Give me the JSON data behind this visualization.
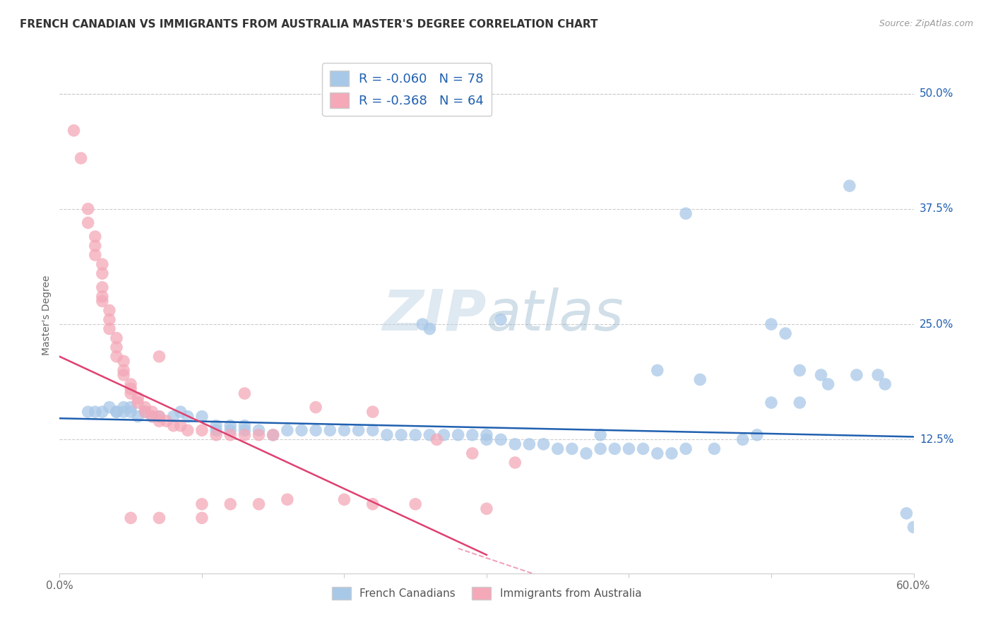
{
  "title": "FRENCH CANADIAN VS IMMIGRANTS FROM AUSTRALIA MASTER'S DEGREE CORRELATION CHART",
  "source": "Source: ZipAtlas.com",
  "ylabel": "Master's Degree",
  "watermark": "ZIPatlas",
  "xlim": [
    0.0,
    0.6
  ],
  "ylim": [
    -0.02,
    0.54
  ],
  "ytick_labels_right": [
    "50.0%",
    "37.5%",
    "25.0%",
    "12.5%"
  ],
  "ytick_positions_right": [
    0.5,
    0.375,
    0.25,
    0.125
  ],
  "blue_R": -0.06,
  "blue_N": 78,
  "pink_R": -0.368,
  "pink_N": 64,
  "blue_color": "#a8c8e8",
  "pink_color": "#f4a8b8",
  "blue_line_color": "#2060b0",
  "pink_line_color": "#e04070",
  "blue_scatter": [
    [
      0.02,
      0.155
    ],
    [
      0.025,
      0.155
    ],
    [
      0.03,
      0.155
    ],
    [
      0.035,
      0.16
    ],
    [
      0.04,
      0.155
    ],
    [
      0.04,
      0.155
    ],
    [
      0.045,
      0.155
    ],
    [
      0.045,
      0.16
    ],
    [
      0.05,
      0.155
    ],
    [
      0.05,
      0.16
    ],
    [
      0.055,
      0.15
    ],
    [
      0.06,
      0.155
    ],
    [
      0.065,
      0.15
    ],
    [
      0.07,
      0.15
    ],
    [
      0.08,
      0.15
    ],
    [
      0.085,
      0.155
    ],
    [
      0.09,
      0.15
    ],
    [
      0.1,
      0.15
    ],
    [
      0.11,
      0.135
    ],
    [
      0.11,
      0.14
    ],
    [
      0.12,
      0.135
    ],
    [
      0.12,
      0.14
    ],
    [
      0.13,
      0.135
    ],
    [
      0.13,
      0.14
    ],
    [
      0.14,
      0.135
    ],
    [
      0.15,
      0.13
    ],
    [
      0.16,
      0.135
    ],
    [
      0.17,
      0.135
    ],
    [
      0.18,
      0.135
    ],
    [
      0.19,
      0.135
    ],
    [
      0.2,
      0.135
    ],
    [
      0.21,
      0.135
    ],
    [
      0.22,
      0.135
    ],
    [
      0.23,
      0.13
    ],
    [
      0.24,
      0.13
    ],
    [
      0.25,
      0.13
    ],
    [
      0.26,
      0.13
    ],
    [
      0.27,
      0.13
    ],
    [
      0.28,
      0.13
    ],
    [
      0.29,
      0.13
    ],
    [
      0.3,
      0.125
    ],
    [
      0.3,
      0.13
    ],
    [
      0.31,
      0.125
    ],
    [
      0.32,
      0.12
    ],
    [
      0.33,
      0.12
    ],
    [
      0.34,
      0.12
    ],
    [
      0.35,
      0.115
    ],
    [
      0.36,
      0.115
    ],
    [
      0.37,
      0.11
    ],
    [
      0.38,
      0.115
    ],
    [
      0.38,
      0.13
    ],
    [
      0.39,
      0.115
    ],
    [
      0.4,
      0.115
    ],
    [
      0.41,
      0.115
    ],
    [
      0.42,
      0.11
    ],
    [
      0.43,
      0.11
    ],
    [
      0.44,
      0.115
    ],
    [
      0.45,
      0.19
    ],
    [
      0.46,
      0.115
    ],
    [
      0.48,
      0.125
    ],
    [
      0.49,
      0.13
    ],
    [
      0.5,
      0.25
    ],
    [
      0.51,
      0.24
    ],
    [
      0.52,
      0.2
    ],
    [
      0.535,
      0.195
    ],
    [
      0.54,
      0.185
    ],
    [
      0.555,
      0.4
    ],
    [
      0.44,
      0.37
    ],
    [
      0.31,
      0.255
    ],
    [
      0.255,
      0.25
    ],
    [
      0.26,
      0.245
    ],
    [
      0.42,
      0.2
    ],
    [
      0.58,
      0.185
    ],
    [
      0.5,
      0.165
    ],
    [
      0.52,
      0.165
    ],
    [
      0.56,
      0.195
    ],
    [
      0.575,
      0.195
    ],
    [
      0.595,
      0.045
    ],
    [
      0.6,
      0.03
    ]
  ],
  "pink_scatter": [
    [
      0.01,
      0.46
    ],
    [
      0.015,
      0.43
    ],
    [
      0.02,
      0.375
    ],
    [
      0.02,
      0.36
    ],
    [
      0.025,
      0.345
    ],
    [
      0.025,
      0.335
    ],
    [
      0.025,
      0.325
    ],
    [
      0.03,
      0.315
    ],
    [
      0.03,
      0.305
    ],
    [
      0.03,
      0.29
    ],
    [
      0.03,
      0.28
    ],
    [
      0.03,
      0.275
    ],
    [
      0.035,
      0.265
    ],
    [
      0.035,
      0.255
    ],
    [
      0.035,
      0.245
    ],
    [
      0.04,
      0.235
    ],
    [
      0.04,
      0.225
    ],
    [
      0.04,
      0.215
    ],
    [
      0.045,
      0.21
    ],
    [
      0.045,
      0.2
    ],
    [
      0.045,
      0.195
    ],
    [
      0.05,
      0.185
    ],
    [
      0.05,
      0.18
    ],
    [
      0.05,
      0.175
    ],
    [
      0.055,
      0.17
    ],
    [
      0.055,
      0.165
    ],
    [
      0.06,
      0.16
    ],
    [
      0.06,
      0.155
    ],
    [
      0.065,
      0.155
    ],
    [
      0.065,
      0.15
    ],
    [
      0.07,
      0.15
    ],
    [
      0.07,
      0.145
    ],
    [
      0.075,
      0.145
    ],
    [
      0.08,
      0.14
    ],
    [
      0.085,
      0.14
    ],
    [
      0.09,
      0.135
    ],
    [
      0.1,
      0.135
    ],
    [
      0.11,
      0.13
    ],
    [
      0.12,
      0.13
    ],
    [
      0.13,
      0.13
    ],
    [
      0.14,
      0.13
    ],
    [
      0.15,
      0.13
    ],
    [
      0.07,
      0.215
    ],
    [
      0.13,
      0.175
    ],
    [
      0.18,
      0.16
    ],
    [
      0.22,
      0.155
    ],
    [
      0.265,
      0.125
    ],
    [
      0.29,
      0.11
    ],
    [
      0.32,
      0.1
    ],
    [
      0.05,
      0.04
    ],
    [
      0.07,
      0.04
    ],
    [
      0.1,
      0.055
    ],
    [
      0.1,
      0.04
    ],
    [
      0.12,
      0.055
    ],
    [
      0.14,
      0.055
    ],
    [
      0.16,
      0.06
    ],
    [
      0.2,
      0.06
    ],
    [
      0.22,
      0.055
    ],
    [
      0.25,
      0.055
    ],
    [
      0.3,
      0.05
    ]
  ],
  "background_color": "#ffffff",
  "grid_color": "#cccccc"
}
